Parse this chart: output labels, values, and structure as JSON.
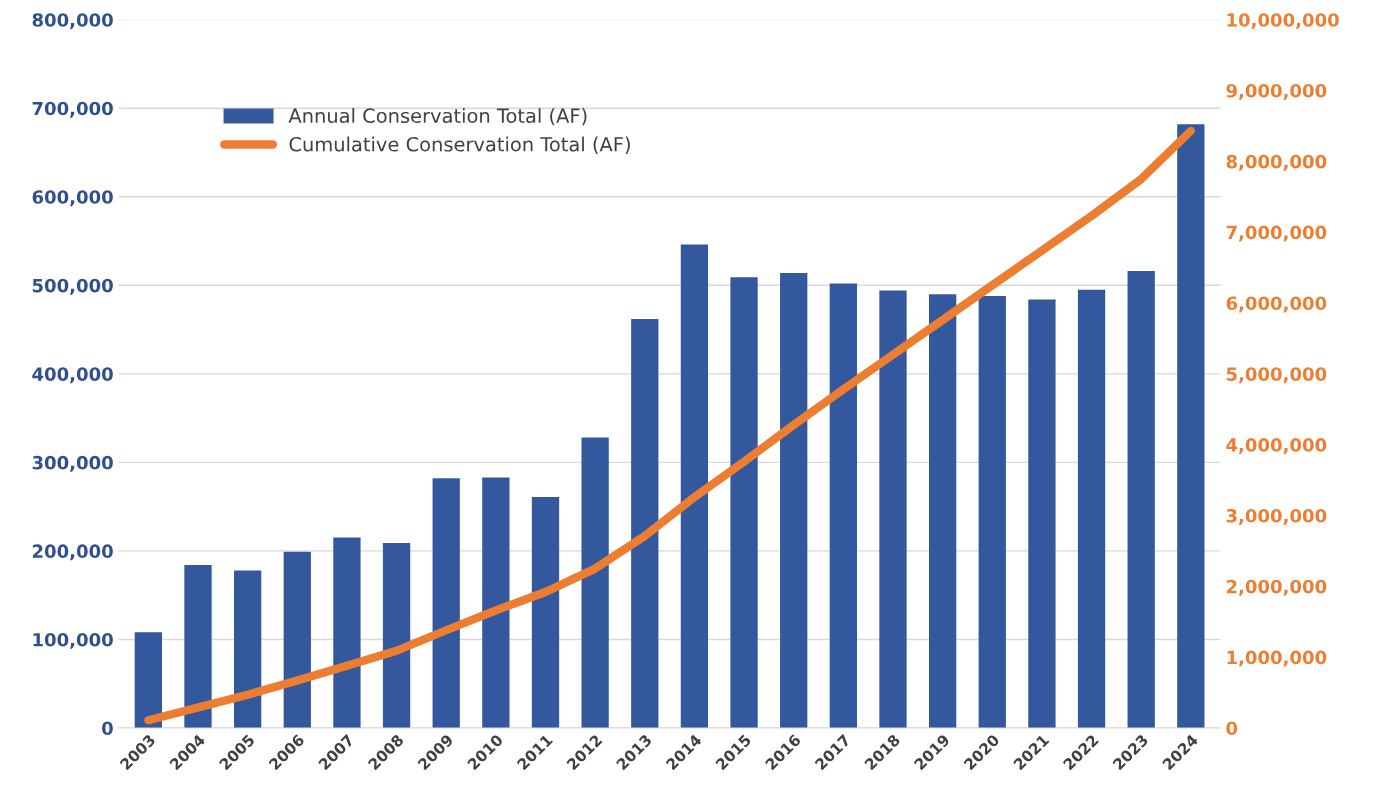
{
  "chart_data": {
    "type": "bar",
    "categories": [
      "2003",
      "2004",
      "2005",
      "2006",
      "2007",
      "2008",
      "2009",
      "2010",
      "2011",
      "2012",
      "2013",
      "2014",
      "2015",
      "2016",
      "2017",
      "2018",
      "2019",
      "2020",
      "2021",
      "2022",
      "2023",
      "2024"
    ],
    "series": [
      {
        "name": "Annual Conservation Total (AF)",
        "color": "#34589e",
        "values": [
          108000,
          184000,
          178000,
          199000,
          215000,
          209000,
          282000,
          283000,
          261000,
          328000,
          462000,
          546000,
          509000,
          514000,
          502000,
          494000,
          490000,
          488000,
          484000,
          495000,
          516000,
          682000
        ]
      },
      {
        "name": "Cumulative Conservation Total (AF)",
        "type": "line",
        "axis": "y2",
        "color": "#ed7d31",
        "values": [
          110000,
          290000,
          470000,
          670000,
          880000,
          1090000,
          1380000,
          1660000,
          1920000,
          2250000,
          2710000,
          3260000,
          3760000,
          4280000,
          4780000,
          5270000,
          5760000,
          6250000,
          6740000,
          7230000,
          7750000,
          8430000
        ]
      }
    ],
    "ylim": [
      0,
      800000
    ],
    "yticks": [
      {
        "value": 0,
        "label": "0"
      },
      {
        "value": 100000,
        "label": "100,000"
      },
      {
        "value": 200000,
        "label": "200,000"
      },
      {
        "value": 300000,
        "label": "300,000"
      },
      {
        "value": 400000,
        "label": "400,000"
      },
      {
        "value": 500000,
        "label": "500,000"
      },
      {
        "value": 600000,
        "label": "600,000"
      },
      {
        "value": 700000,
        "label": "700,000"
      },
      {
        "value": 800000,
        "label": "800,000"
      }
    ],
    "y2lim": [
      0,
      10000000
    ],
    "y2ticks": [
      {
        "value": 0,
        "label": "0"
      },
      {
        "value": 1000000,
        "label": "1,000,000"
      },
      {
        "value": 2000000,
        "label": "2,000,000"
      },
      {
        "value": 3000000,
        "label": "3,000,000"
      },
      {
        "value": 4000000,
        "label": "4,000,000"
      },
      {
        "value": 5000000,
        "label": "5,000,000"
      },
      {
        "value": 6000000,
        "label": "6,000,000"
      },
      {
        "value": 7000000,
        "label": "7,000,000"
      },
      {
        "value": 8000000,
        "label": "8,000,000"
      },
      {
        "value": 9000000,
        "label": "9,000,000"
      },
      {
        "value": 10000000,
        "label": "10,000,000"
      }
    ],
    "grid": "y",
    "legend": "top left"
  }
}
